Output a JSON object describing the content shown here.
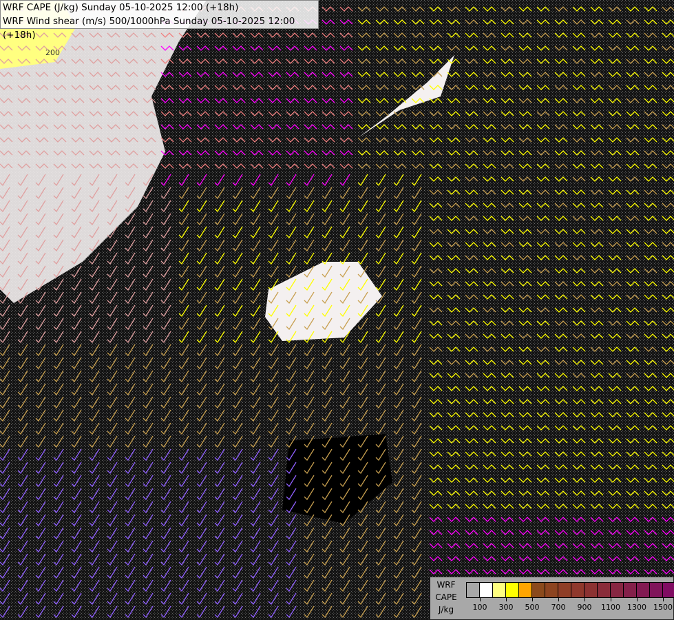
{
  "header": {
    "line1": "WRF CAPE (J/kg) Sunday 05-10-2025 12:00 (+18h)",
    "line2": "WRF Wind shear (m/s) 500/1000hPa Sunday 05-10-2025 12:00 (+18h)"
  },
  "map": {
    "contour_label": "200",
    "background_color": "#141414",
    "barb_colors": {
      "low": "#e0a0a0",
      "mid": "#ff00ff",
      "high": "#ffff00",
      "tan": "#c8a050",
      "purple": "#9060ff",
      "pink": "#f08080"
    }
  },
  "legend": {
    "label_line1": "WRF",
    "label_line2": "CAPE",
    "label_line3": "J/kg",
    "colors": [
      "#a8a8a8",
      "#ffffff",
      "#ffff80",
      "#ffff00",
      "#ffa500",
      "#8b4a1c",
      "#8d4420",
      "#8f3e26",
      "#8f382c",
      "#8c3232",
      "#8a2c3a",
      "#872642",
      "#84204a",
      "#821a52",
      "#80145a",
      "#800c62"
    ],
    "tick_labels": [
      "100",
      "300",
      "500",
      "700",
      "900",
      "1100",
      "1300",
      "1500"
    ]
  }
}
